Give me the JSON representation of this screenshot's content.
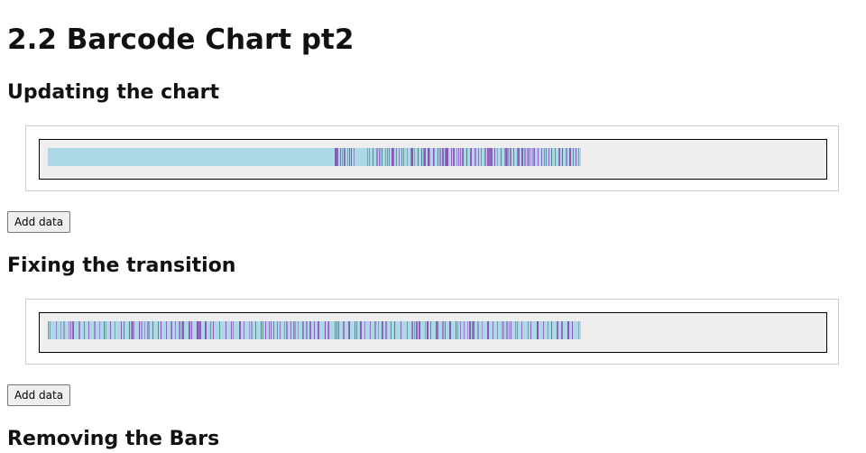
{
  "header": {
    "title": "2.2 Barcode Chart pt2"
  },
  "sections": [
    {
      "heading": "Updating the chart",
      "button": "Add data"
    },
    {
      "heading": "Fixing the transition",
      "button": "Add data"
    },
    {
      "heading": "Removing the Bars"
    }
  ]
}
